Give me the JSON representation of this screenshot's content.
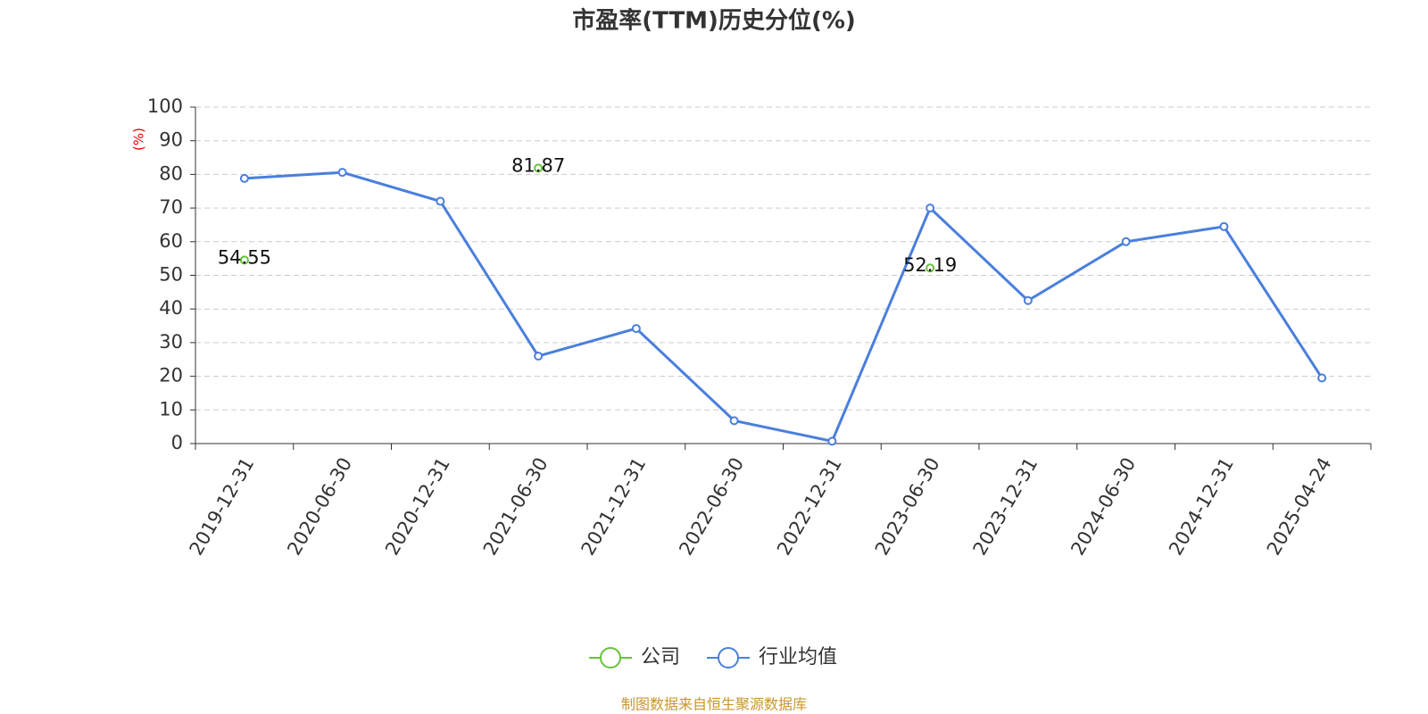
{
  "chart_data": {
    "type": "line",
    "title": "市盈率(TTM)历史分位(%)",
    "y_label": "(%)",
    "categories": [
      "2019-12-31",
      "2020-06-30",
      "2020-12-31",
      "2021-06-30",
      "2021-12-31",
      "2022-06-30",
      "2022-12-31",
      "2023-06-30",
      "2023-12-31",
      "2024-06-30",
      "2024-12-31",
      "2025-04-24"
    ],
    "series": [
      {
        "name": "公司",
        "color": "#67c23a",
        "labels": true,
        "values": [
          54.55,
          null,
          null,
          81.87,
          null,
          null,
          null,
          52.19,
          null,
          null,
          null,
          null
        ]
      },
      {
        "name": "行业均值",
        "color": "#4a7fdc",
        "labels": false,
        "values": [
          78.8,
          80.6,
          72,
          26,
          34.2,
          6.8,
          0.7,
          70,
          42.5,
          60,
          64.5,
          19.5
        ]
      }
    ],
    "ylim": [
      0,
      100
    ],
    "yticks": [
      0,
      10,
      20,
      30,
      40,
      50,
      60,
      70,
      80,
      90,
      100
    ],
    "grid": true,
    "source": "制图数据来自恒生聚源数据库"
  }
}
